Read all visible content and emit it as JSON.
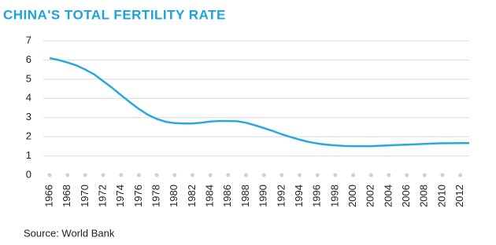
{
  "chart_data": {
    "type": "line",
    "title": "CHINA'S TOTAL FERTILITY RATE",
    "source": "Source: World Bank",
    "x": [
      1966,
      1967,
      1968,
      1969,
      1970,
      1971,
      1972,
      1973,
      1974,
      1975,
      1976,
      1977,
      1978,
      1979,
      1980,
      1981,
      1982,
      1983,
      1984,
      1985,
      1986,
      1987,
      1988,
      1989,
      1990,
      1991,
      1992,
      1993,
      1994,
      1995,
      1996,
      1997,
      1998,
      1999,
      2000,
      2001,
      2002,
      2003,
      2004,
      2005,
      2006,
      2007,
      2008,
      2009,
      2010,
      2011,
      2012,
      2013
    ],
    "values": [
      6.1,
      6.0,
      5.87,
      5.72,
      5.5,
      5.25,
      4.9,
      4.55,
      4.17,
      3.8,
      3.45,
      3.15,
      2.93,
      2.78,
      2.71,
      2.69,
      2.69,
      2.73,
      2.79,
      2.82,
      2.82,
      2.81,
      2.73,
      2.6,
      2.45,
      2.3,
      2.13,
      1.98,
      1.85,
      1.73,
      1.65,
      1.59,
      1.55,
      1.52,
      1.51,
      1.51,
      1.51,
      1.53,
      1.55,
      1.57,
      1.59,
      1.61,
      1.63,
      1.65,
      1.66,
      1.66,
      1.67,
      1.67
    ],
    "color": "#29a8e0",
    "xlim": [
      1966,
      2013
    ],
    "xticks": [
      1966,
      1968,
      1970,
      1972,
      1974,
      1976,
      1978,
      1980,
      1982,
      1984,
      1986,
      1988,
      1990,
      1992,
      1994,
      1996,
      1998,
      2000,
      2002,
      2004,
      2006,
      2008,
      2010,
      2012
    ],
    "ylim": [
      0,
      7
    ],
    "yticks": [
      0,
      1,
      2,
      3,
      4,
      5,
      6,
      7
    ],
    "grid": true
  }
}
